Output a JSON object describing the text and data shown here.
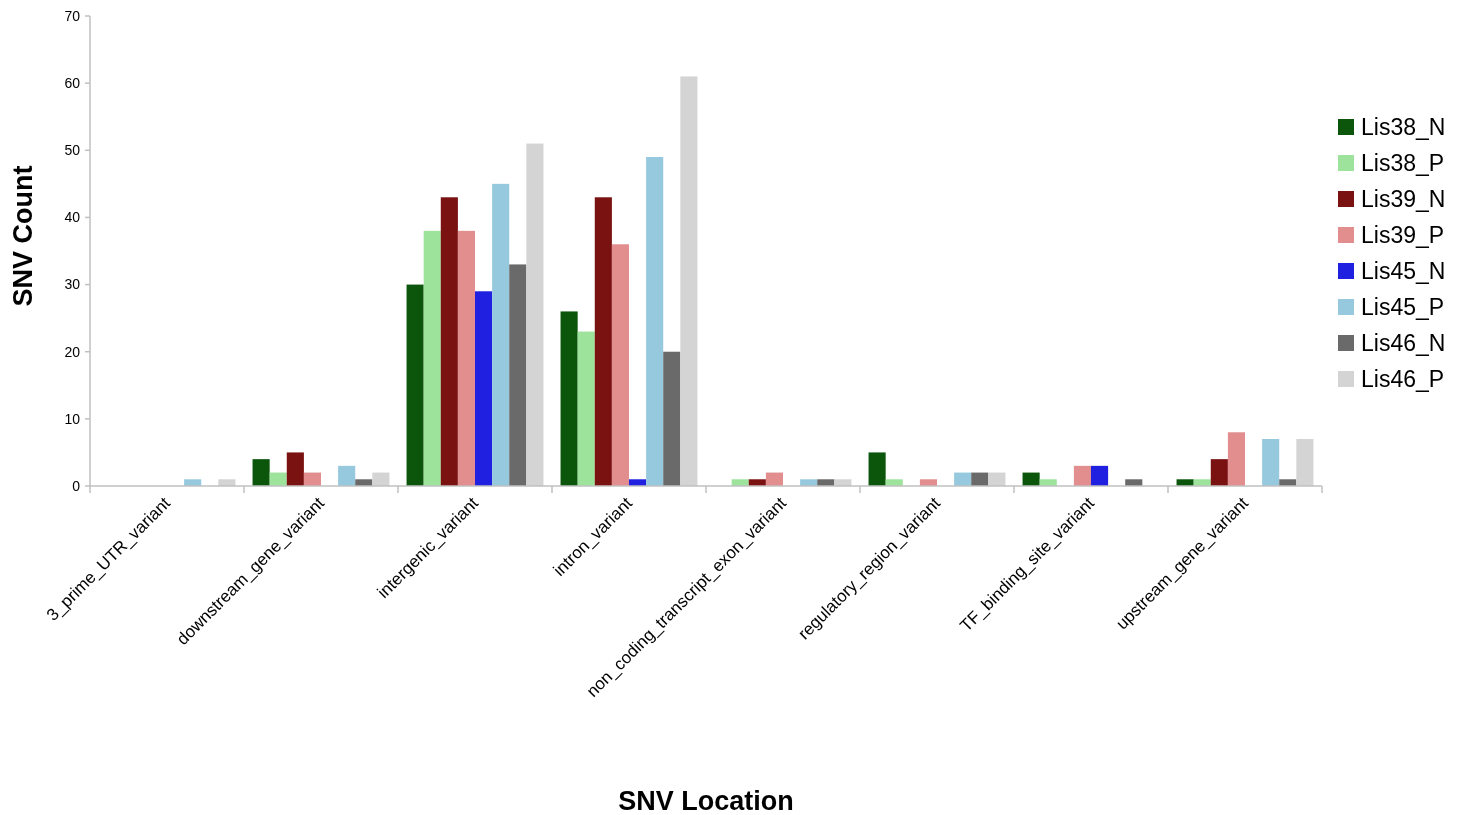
{
  "chart_data": {
    "type": "bar",
    "xlabel": "SNV Location",
    "ylabel": "SNV Count",
    "categories": [
      "3_prime_UTR_variant",
      "downstream_gene_variant",
      "intergenic_variant",
      "intron_variant",
      "non_coding_transcript_exon_variant",
      "regulatory_region_variant",
      "TF_binding_site_variant",
      "upstream_gene_variant"
    ],
    "series": [
      {
        "name": "Lis38_N",
        "color": "#0c560c",
        "values": [
          0,
          4,
          30,
          26,
          0,
          5,
          2,
          1
        ]
      },
      {
        "name": "Lis38_P",
        "color": "#9de39b",
        "values": [
          0,
          2,
          38,
          23,
          1,
          1,
          1,
          1
        ]
      },
      {
        "name": "Lis39_N",
        "color": "#7a1212",
        "values": [
          0,
          5,
          43,
          43,
          1,
          0,
          0,
          4
        ]
      },
      {
        "name": "Lis39_P",
        "color": "#e28d8e",
        "values": [
          0,
          2,
          38,
          36,
          2,
          1,
          3,
          8
        ]
      },
      {
        "name": "Lis45_N",
        "color": "#1f20e0",
        "values": [
          0,
          0,
          29,
          1,
          0,
          0,
          3,
          0
        ]
      },
      {
        "name": "Lis45_P",
        "color": "#96c9de",
        "values": [
          1,
          3,
          45,
          49,
          1,
          2,
          0,
          7
        ]
      },
      {
        "name": "Lis46_N",
        "color": "#6a6a6a",
        "values": [
          0,
          1,
          33,
          20,
          1,
          2,
          1,
          1
        ]
      },
      {
        "name": "Lis46_P",
        "color": "#d4d4d4",
        "values": [
          1,
          2,
          51,
          61,
          1,
          2,
          0,
          7
        ]
      }
    ],
    "ylim": [
      0,
      70
    ],
    "yticks": [
      0,
      10,
      20,
      30,
      40,
      50,
      60,
      70
    ],
    "grid": false,
    "legend": "right"
  }
}
